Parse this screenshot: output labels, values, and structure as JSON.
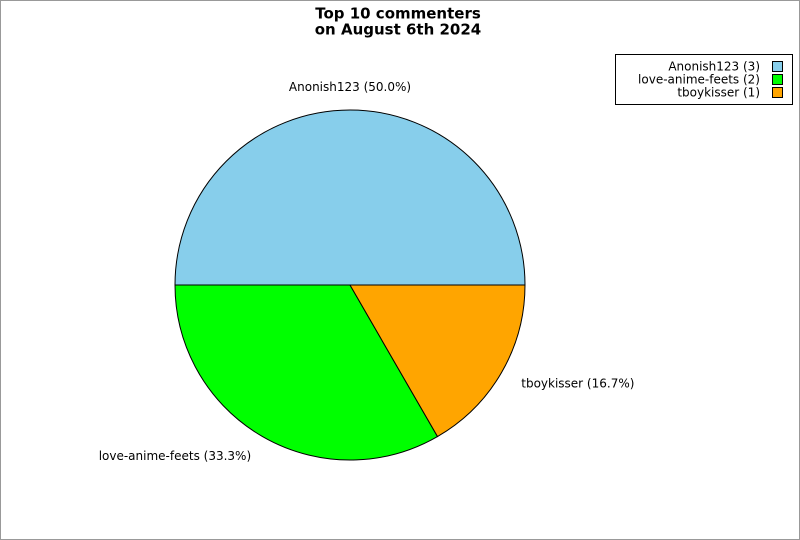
{
  "chart_data": {
    "type": "pie",
    "title": [
      "Top 10 commenters",
      "on August 6th 2024"
    ],
    "values": [
      3,
      2,
      1
    ],
    "colors": [
      "#87ceeb",
      "#00ff00",
      "#ffa500"
    ],
    "value_labels": [
      "Anonish123 (50.0%)",
      "love-anime-feets (33.3%)",
      "tboykisser (16.7%)"
    ],
    "legend_labels": [
      "Anonish123 (3)",
      "love-anime-feets (2)",
      "tboykisser (1)"
    ],
    "legend": "upper right"
  }
}
